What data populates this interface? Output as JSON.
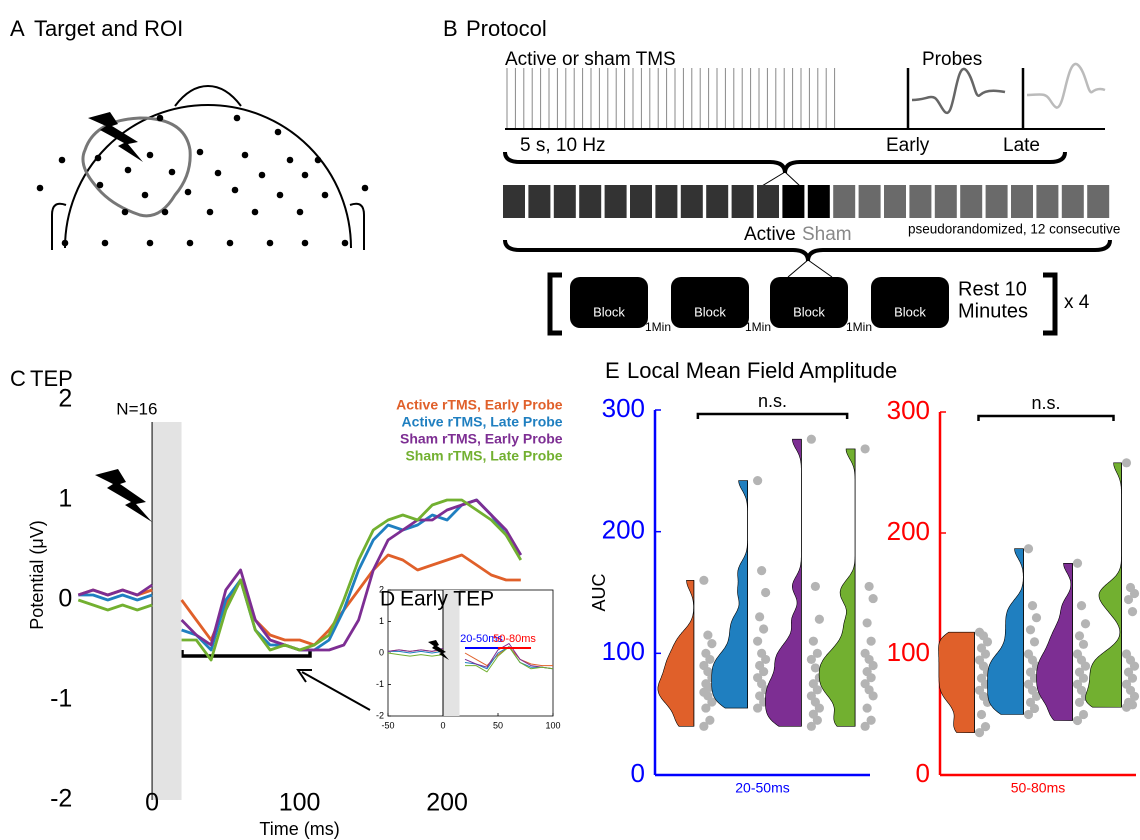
{
  "panel_a": {
    "letter": "A",
    "title": "Target and ROI"
  },
  "panel_b": {
    "letter": "B",
    "title": "Protocol",
    "train_label": "Active or sham TMS",
    "probes_label": "Probes",
    "train_spec": "5 s, 10 Hz",
    "early_label": "Early",
    "late_label": "Late",
    "active_label": "Active",
    "sham_label": "Sham",
    "order_note": "pseudorandomized, 12 consecutive",
    "blocks": [
      "Block",
      "Block",
      "Block",
      "Block"
    ],
    "intervals": [
      "1Min",
      "1Min",
      "1Min"
    ],
    "rest_label": [
      "Rest 10",
      "Minutes"
    ],
    "repeat_label": "x 4"
  },
  "panel_c": {
    "letter": "C",
    "title": "TEP"
  },
  "panel_d": {
    "letter": "D",
    "title": "Early TEP"
  },
  "panel_e": {
    "letter": "E",
    "title": "Local Mean Field Amplitude"
  },
  "chart_data": [
    {
      "type": "line",
      "annotation": "N=16",
      "xlabel": "Time (ms)",
      "ylabel": "Potential (μV)",
      "x": [
        -50,
        -40,
        -30,
        -20,
        -10,
        0,
        10,
        20,
        30,
        40,
        50,
        60,
        70,
        80,
        90,
        100,
        110,
        120,
        130,
        140,
        150,
        160,
        170,
        180,
        190,
        200,
        210,
        220,
        230,
        240,
        250
      ],
      "series": [
        {
          "name": "Active rTMS, Early Probe",
          "color": "#e0602a",
          "values": [
            0.05,
            0.1,
            0.05,
            0.1,
            0.05,
            0.1,
            null,
            0,
            -0.2,
            -0.4,
            -0.05,
            0.2,
            -0.2,
            -0.35,
            -0.4,
            -0.4,
            -0.45,
            -0.3,
            -0.1,
            0.1,
            0.3,
            0.45,
            0.4,
            0.3,
            0.35,
            0.4,
            0.45,
            0.35,
            0.25,
            0.2,
            0.2
          ]
        },
        {
          "name": "Active rTMS, Late Probe",
          "color": "#1f7fc0",
          "values": [
            0.05,
            0.05,
            0,
            0.05,
            0,
            0.05,
            null,
            -0.3,
            -0.35,
            -0.5,
            0,
            0.2,
            -0.3,
            -0.45,
            -0.45,
            -0.5,
            -0.5,
            -0.4,
            -0.1,
            0.3,
            0.6,
            0.75,
            0.7,
            0.75,
            0.85,
            0.8,
            0.95,
            1.0,
            0.85,
            0.65,
            0.45
          ]
        },
        {
          "name": "Sham rTMS, Early Probe",
          "color": "#7d2e93",
          "values": [
            0.05,
            0.1,
            0.05,
            0.1,
            0.05,
            0.15,
            null,
            -0.2,
            -0.35,
            -0.45,
            0.1,
            0.3,
            -0.2,
            -0.4,
            -0.45,
            -0.5,
            -0.5,
            -0.5,
            -0.45,
            -0.2,
            0.3,
            0.6,
            0.7,
            0.8,
            0.8,
            0.9,
            0.95,
            1.0,
            0.85,
            0.7,
            0.45
          ]
        },
        {
          "name": "Sham rTMS, Late Probe",
          "color": "#72b030",
          "values": [
            0,
            -0.05,
            -0.1,
            -0.05,
            -0.1,
            -0.05,
            null,
            -0.4,
            -0.4,
            -0.6,
            -0.1,
            0.2,
            -0.3,
            -0.5,
            -0.45,
            -0.5,
            -0.45,
            -0.35,
            0,
            0.4,
            0.7,
            0.8,
            0.85,
            0.8,
            0.95,
            1.0,
            1.0,
            0.9,
            0.8,
            0.65,
            0.4
          ]
        }
      ],
      "xlim": [
        -50,
        260
      ],
      "ylim": [
        -2,
        2
      ],
      "xticks": [
        0,
        100,
        200
      ],
      "yticks": [
        2,
        1,
        0,
        -1,
        -2
      ],
      "stim_artifact": [
        0,
        20
      ]
    },
    {
      "type": "line",
      "x": [
        -50,
        -40,
        -30,
        -20,
        -10,
        0,
        10,
        20,
        30,
        40,
        50,
        60,
        70,
        80,
        90,
        100
      ],
      "series": [
        {
          "color": "#e0602a",
          "values": [
            0.05,
            0.1,
            0.05,
            0.1,
            0.05,
            0.1,
            null,
            0,
            -0.2,
            -0.4,
            -0.05,
            0.2,
            -0.2,
            -0.35,
            -0.4,
            -0.4
          ]
        },
        {
          "color": "#1f7fc0",
          "values": [
            0.05,
            0.05,
            0,
            0.05,
            0,
            0.05,
            null,
            -0.3,
            -0.35,
            -0.5,
            0,
            0.2,
            -0.3,
            -0.45,
            -0.45,
            -0.5
          ]
        },
        {
          "color": "#7d2e93",
          "values": [
            0.05,
            0.1,
            0.05,
            0.1,
            0.05,
            0.15,
            null,
            -0.2,
            -0.35,
            -0.45,
            0.1,
            0.3,
            -0.2,
            -0.4,
            -0.45,
            -0.5
          ]
        },
        {
          "color": "#72b030",
          "values": [
            0,
            -0.05,
            -0.1,
            -0.05,
            -0.1,
            -0.05,
            null,
            -0.4,
            -0.4,
            -0.6,
            -0.1,
            0.2,
            -0.3,
            -0.5,
            -0.45,
            -0.5
          ]
        }
      ],
      "xlim": [
        -50,
        100
      ],
      "ylim": [
        -2,
        2
      ],
      "xticks": [
        -50,
        0,
        50,
        100
      ],
      "yticks": [
        2,
        1,
        0,
        -1,
        -2
      ],
      "stim_artifact": [
        0,
        15
      ],
      "windows": [
        {
          "label": "20-50ms",
          "start": 20,
          "end": 50,
          "color": "#0000ff"
        },
        {
          "label": "50-80ms",
          "start": 50,
          "end": 80,
          "color": "#ff0000"
        }
      ]
    },
    {
      "type": "violin",
      "annotation": "n.s.",
      "xlabel": "20-50ms",
      "ylabel": "AUC",
      "axis_color": "#0000ff",
      "ylim": [
        0,
        300
      ],
      "yticks": [
        0,
        100,
        200,
        300
      ],
      "series": [
        {
          "color": "#e0602a",
          "values": [
            160,
            115,
            108,
            100,
            95,
            90,
            85,
            80,
            75,
            72,
            68,
            65,
            60,
            55,
            45,
            40
          ]
        },
        {
          "color": "#1f7fc0",
          "values": [
            242,
            168,
            150,
            130,
            120,
            110,
            100,
            95,
            90,
            85,
            80,
            75,
            70,
            65,
            60,
            55
          ]
        },
        {
          "color": "#7d2e93",
          "values": [
            276,
            155,
            128,
            110,
            100,
            95,
            88,
            80,
            75,
            70,
            65,
            60,
            55,
            50,
            45,
            40
          ]
        },
        {
          "color": "#72b030",
          "values": [
            268,
            155,
            145,
            125,
            110,
            100,
            95,
            90,
            85,
            80,
            75,
            70,
            65,
            55,
            45,
            40
          ]
        }
      ]
    },
    {
      "type": "violin",
      "annotation": "n.s.",
      "xlabel": "50-80ms",
      "axis_color": "#ff0000",
      "ylim": [
        0,
        300
      ],
      "yticks": [
        0,
        100,
        200,
        300
      ],
      "series": [
        {
          "color": "#e0602a",
          "values": [
            118,
            115,
            110,
            105,
            100,
            95,
            90,
            85,
            80,
            75,
            70,
            65,
            60,
            50,
            40,
            35
          ]
        },
        {
          "color": "#1f7fc0",
          "values": [
            187,
            140,
            130,
            120,
            110,
            100,
            95,
            90,
            85,
            80,
            75,
            70,
            65,
            60,
            55,
            50
          ]
        },
        {
          "color": "#7d2e93",
          "values": [
            175,
            140,
            125,
            115,
            108,
            100,
            95,
            90,
            85,
            80,
            75,
            70,
            65,
            60,
            50,
            45
          ]
        },
        {
          "color": "#72b030",
          "values": [
            258,
            155,
            150,
            145,
            135,
            100,
            95,
            90,
            85,
            80,
            75,
            70,
            65,
            60,
            58,
            56
          ]
        }
      ]
    }
  ]
}
